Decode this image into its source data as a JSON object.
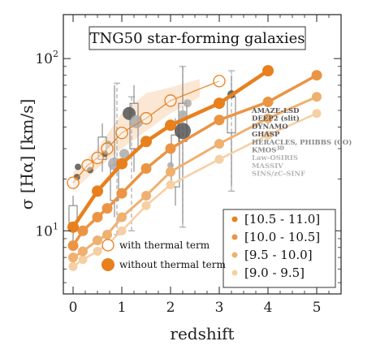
{
  "chart_data": {
    "type": "line",
    "title": "TNG50 star-forming galaxies",
    "xlabel": "redshift",
    "ylabel": "σ [Hα] [km/s]",
    "xlim": [
      -0.2,
      5.5
    ],
    "ylim": [
      4.3,
      180
    ],
    "yscale": "log",
    "x_ticks": [
      {
        "v": 0,
        "t": "0"
      },
      {
        "v": 1,
        "t": "1"
      },
      {
        "v": 2,
        "t": "2"
      },
      {
        "v": 3,
        "t": "3"
      },
      {
        "v": 4,
        "t": "4"
      },
      {
        "v": 5,
        "t": "5"
      }
    ],
    "y_ticks": [
      {
        "v": 10,
        "t": "10^1"
      },
      {
        "v": 100,
        "t": "10^2"
      }
    ],
    "colors": {
      "s1": "#e8801e",
      "s2": "#eb9444",
      "s3": "#f0b070",
      "s4": "#f6cfa3",
      "band": "#fbe3cd",
      "obs_grey_dark": "#555555",
      "obs_grey_light": "#aaaaaa",
      "box": "#777777"
    },
    "series": [
      {
        "name": "[10.5 - 11.0]",
        "color_key": "s1",
        "x": [
          0,
          0.5,
          1,
          1.5,
          2,
          3,
          4
        ],
        "y": [
          10.5,
          17,
          24.5,
          33,
          41,
          55,
          85
        ]
      },
      {
        "name": "[10.0 - 10.5]",
        "color_key": "s2",
        "x": [
          0,
          0.2,
          0.5,
          0.7,
          1,
          1.5,
          2,
          3,
          4,
          5
        ],
        "y": [
          8.2,
          10,
          12,
          13.5,
          16.5,
          23,
          30,
          44,
          56,
          80
        ]
      },
      {
        "name": "[9.5 - 10.0]",
        "color_key": "s3",
        "x": [
          0,
          0.2,
          0.5,
          0.7,
          1,
          1.5,
          2,
          3,
          4,
          5
        ],
        "y": [
          7,
          7.6,
          8.8,
          9.5,
          12,
          16,
          22,
          32,
          45,
          60
        ]
      },
      {
        "name": "[9.0 - 9.5]",
        "color_key": "s4",
        "x": [
          0,
          0.2,
          0.5,
          0.7,
          1,
          1.5,
          2,
          3,
          4,
          5
        ],
        "y": [
          6.2,
          6.8,
          7.6,
          8.3,
          10,
          14,
          18.5,
          26,
          36,
          48
        ]
      }
    ],
    "thermal_series": {
      "name": "with thermal term",
      "color_key": "s1",
      "x": [
        0,
        0.3,
        0.5,
        0.7,
        1,
        1.5,
        2,
        3
      ],
      "y": [
        19,
        24,
        26.5,
        30,
        37,
        45,
        57,
        74
      ]
    },
    "thermal_band": {
      "x": [
        0,
        0.5,
        1,
        1.5,
        2,
        2.6
      ],
      "lo": [
        17,
        23,
        30,
        38,
        48,
        60
      ],
      "hi": [
        22,
        30,
        48,
        63,
        68,
        76
      ]
    },
    "observations": {
      "points": [
        {
          "x": 0.08,
          "y": 20.5,
          "shade": "dark",
          "r": 4
        },
        {
          "x": 0.1,
          "y": 23.5,
          "shade": "dark",
          "r": 4
        },
        {
          "x": 0.35,
          "y": 22.5,
          "shade": "dark",
          "r": 4
        },
        {
          "x": 0.65,
          "y": 28,
          "shade": "dark",
          "r": 4
        },
        {
          "x": 0.72,
          "y": 32,
          "shade": "light",
          "r": 4
        },
        {
          "x": 0.85,
          "y": 24.5,
          "shade": "light",
          "r": 8
        },
        {
          "x": 1.15,
          "y": 48,
          "shade": "dark",
          "r": 8
        },
        {
          "x": 1.3,
          "y": 43,
          "shade": "light",
          "r": 8
        },
        {
          "x": 1.05,
          "y": 28,
          "shade": "light",
          "r": 6
        },
        {
          "x": 2.25,
          "y": 38,
          "shade": "dark",
          "r": 10
        },
        {
          "x": 2.25,
          "y": 47,
          "shade": "light",
          "r": 6
        },
        {
          "x": 2.35,
          "y": 55,
          "shade": "light",
          "r": 5
        },
        {
          "x": 3.25,
          "y": 62,
          "shade": "dark",
          "r": 5
        },
        {
          "x": 2.0,
          "y": 24,
          "shade": "light",
          "r": 4
        }
      ],
      "boxes": [
        {
          "x": 0.0,
          "q1": 10,
          "q3": 14,
          "lo": 8,
          "hi": 16
        },
        {
          "x": 0.6,
          "q1": 26,
          "q3": 35,
          "lo": 22,
          "hi": 42
        },
        {
          "x": 0.85,
          "q1": 15,
          "q3": 24,
          "lo": 12,
          "hi": 70
        },
        {
          "x": 1.25,
          "q1": 30,
          "q3": 55,
          "lo": 22,
          "hi": 70
        },
        {
          "x": 2.1,
          "q1": 18,
          "q3": 36,
          "lo": 14,
          "hi": 45
        },
        {
          "x": 2.25,
          "q1": 33,
          "q3": 55,
          "lo": 11,
          "hi": 90
        },
        {
          "x": 3.25,
          "q1": 37,
          "q3": 60,
          "lo": 18,
          "hi": 80
        }
      ],
      "dashes": [
        {
          "x": 0.9,
          "lo": 9.5,
          "hi": 72
        },
        {
          "x": 1.2,
          "lo": 10,
          "hi": 60
        },
        {
          "x": 2.25,
          "lo": 10.5,
          "hi": 90
        },
        {
          "x": 3.25,
          "lo": 17,
          "hi": 85
        }
      ],
      "surveys": [
        {
          "label": "AMAZE-LSD",
          "shade": "dark"
        },
        {
          "label": "DEEP2 (slit)",
          "shade": "dark"
        },
        {
          "label": "DYNAMO",
          "shade": "dark"
        },
        {
          "label": "GHASP",
          "shade": "dark"
        },
        {
          "label": "HERACLES, PHIBBS (CO)",
          "shade": "mid"
        },
        {
          "label": "KMOS",
          "sup": "3D",
          "shade": "mid"
        },
        {
          "label": "Law-OSIRIS",
          "shade": "light"
        },
        {
          "label": "MASSIV",
          "shade": "light"
        },
        {
          "label": "SINS/zC-SINF",
          "shade": "light"
        }
      ]
    },
    "legend_mass": {
      "placement": "bottom-right",
      "entries": [
        "[10.5 - 11.0]",
        "[10.0 - 10.5]",
        "[9.5 - 10.0]",
        "[9.0 - 9.5]"
      ]
    },
    "legend_style": {
      "placement": "lower-left",
      "entries": [
        "with thermal term",
        "without thermal term"
      ]
    }
  }
}
